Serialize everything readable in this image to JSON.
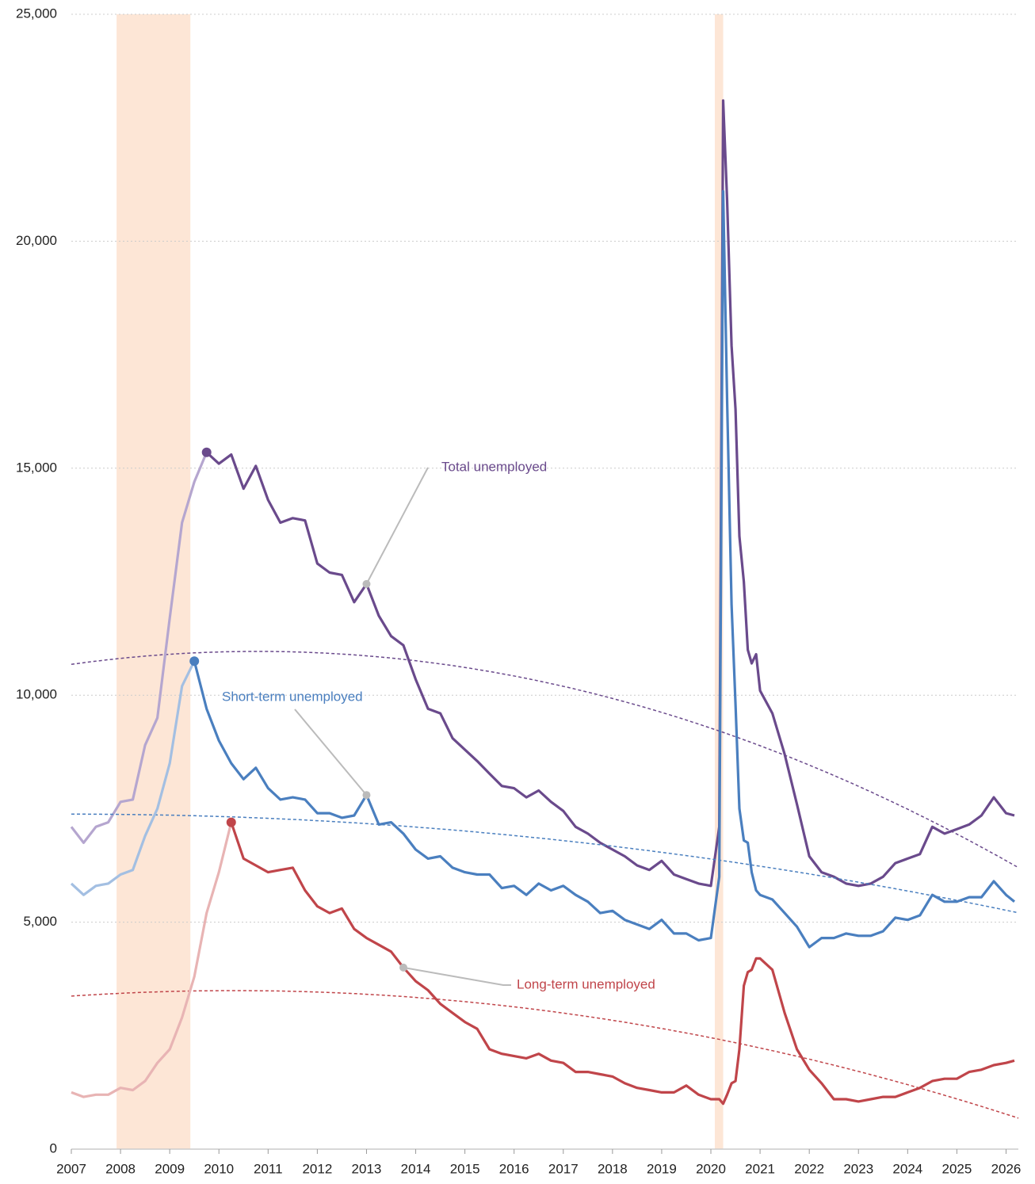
{
  "chart_data": {
    "type": "line",
    "x": [
      2007.0,
      2007.25,
      2007.5,
      2007.75,
      2008.0,
      2008.25,
      2008.5,
      2008.75,
      2009.0,
      2009.25,
      2009.5,
      2009.75,
      2010.0,
      2010.25,
      2010.5,
      2010.75,
      2011.0,
      2011.25,
      2011.5,
      2011.75,
      2012.0,
      2012.25,
      2012.5,
      2012.75,
      2013.0,
      2013.25,
      2013.5,
      2013.75,
      2014.0,
      2014.25,
      2014.5,
      2014.75,
      2015.0,
      2015.25,
      2015.5,
      2015.75,
      2016.0,
      2016.25,
      2016.5,
      2016.75,
      2017.0,
      2017.25,
      2017.5,
      2017.75,
      2018.0,
      2018.25,
      2018.5,
      2018.75,
      2019.0,
      2019.25,
      2019.5,
      2019.75,
      2020.0,
      2020.17,
      2020.25,
      2020.33,
      2020.42,
      2020.5,
      2020.58,
      2020.67,
      2020.75,
      2020.83,
      2020.92,
      2021.0,
      2021.25,
      2021.5,
      2021.75,
      2022.0,
      2022.25,
      2022.5,
      2022.75,
      2023.0,
      2023.25,
      2023.5,
      2023.75,
      2024.0,
      2024.25,
      2024.5,
      2024.75,
      2025.0,
      2025.25,
      2025.5,
      2025.75,
      2026.0,
      2026.17
    ],
    "series": [
      {
        "name": "Total unemployed",
        "color": "#6a4a8c",
        "faded_color": "#b5a6cf",
        "values": [
          7100,
          6750,
          7100,
          7200,
          7650,
          7700,
          8900,
          9500,
          11700,
          13800,
          14700,
          15350,
          15100,
          15300,
          14550,
          15050,
          14300,
          13800,
          13900,
          13850,
          12900,
          12700,
          12650,
          12050,
          12450,
          11750,
          11300,
          11100,
          10350,
          9700,
          9600,
          9050,
          8800,
          8550,
          8270,
          8000,
          7950,
          7750,
          7900,
          7650,
          7450,
          7100,
          6950,
          6750,
          6600,
          6450,
          6250,
          6150,
          6350,
          6050,
          5950,
          5850,
          5800,
          7100,
          23100,
          20900,
          17700,
          16300,
          13500,
          12500,
          11000,
          10700,
          10900,
          10100,
          9600,
          8700,
          7600,
          6450,
          6100,
          6000,
          5850,
          5800,
          5850,
          6000,
          6300,
          6400,
          6500,
          7100,
          6950,
          7050,
          7150,
          7350,
          7750,
          7400,
          7350
        ]
      },
      {
        "name": "Short-term unemployed",
        "color": "#4a7fbf",
        "faded_color": "#a3bfe2",
        "values": [
          5850,
          5600,
          5800,
          5850,
          6050,
          6150,
          6900,
          7500,
          8500,
          10200,
          10750,
          9700,
          9000,
          8500,
          8150,
          8400,
          7950,
          7700,
          7750,
          7700,
          7400,
          7400,
          7300,
          7350,
          7800,
          7150,
          7200,
          6950,
          6600,
          6400,
          6450,
          6200,
          6100,
          6050,
          6050,
          5750,
          5800,
          5600,
          5850,
          5700,
          5800,
          5600,
          5450,
          5200,
          5250,
          5050,
          4950,
          4850,
          5050,
          4750,
          4750,
          4600,
          4650,
          6000,
          21100,
          16500,
          12000,
          9800,
          7500,
          6800,
          6750,
          6100,
          5700,
          5600,
          5500,
          5200,
          4900,
          4450,
          4650,
          4650,
          4750,
          4700,
          4700,
          4800,
          5100,
          5050,
          5150,
          5600,
          5450,
          5450,
          5550,
          5550,
          5900,
          5600,
          5450
        ]
      },
      {
        "name": "Long-term unemployed",
        "color": "#c0454a",
        "faded_color": "#e8b4b4",
        "values": [
          1250,
          1150,
          1200,
          1200,
          1350,
          1300,
          1500,
          1900,
          2200,
          2900,
          3800,
          5200,
          6100,
          7200,
          6400,
          6250,
          6100,
          6150,
          6200,
          5700,
          5350,
          5200,
          5300,
          4850,
          4650,
          4500,
          4350,
          4000,
          3700,
          3500,
          3200,
          3000,
          2800,
          2650,
          2200,
          2100,
          2050,
          2000,
          2100,
          1950,
          1900,
          1700,
          1700,
          1650,
          1600,
          1450,
          1350,
          1300,
          1250,
          1250,
          1400,
          1200,
          1100,
          1100,
          1000,
          1200,
          1450,
          1500,
          2200,
          3600,
          3900,
          3950,
          4200,
          4200,
          3950,
          3000,
          2200,
          1750,
          1450,
          1100,
          1100,
          1050,
          1100,
          1150,
          1150,
          1250,
          1350,
          1500,
          1550,
          1550,
          1700,
          1750,
          1850,
          1900,
          1950
        ]
      }
    ],
    "recessions": [
      [
        2007.92,
        2009.42
      ],
      [
        2020.08,
        2020.25
      ]
    ],
    "recession_color": "#fde6d6",
    "xlim": [
      2007,
      2026.25
    ],
    "xticks": [
      2007,
      2008,
      2009,
      2010,
      2011,
      2012,
      2013,
      2014,
      2015,
      2016,
      2017,
      2018,
      2019,
      2020,
      2021,
      2022,
      2023,
      2024,
      2025,
      2026
    ],
    "ylim": [
      0,
      25000
    ],
    "yticks": [
      0,
      {
        "value": 5000,
        "label": "5,000"
      },
      {
        "value": 10000,
        "label": "10,000"
      },
      {
        "value": 15000,
        "label": "15,000"
      },
      {
        "value": 20000,
        "label": "20,000"
      },
      {
        "value": 25000,
        "label": "25,000"
      }
    ],
    "grid": true,
    "trend": "quadratic"
  }
}
